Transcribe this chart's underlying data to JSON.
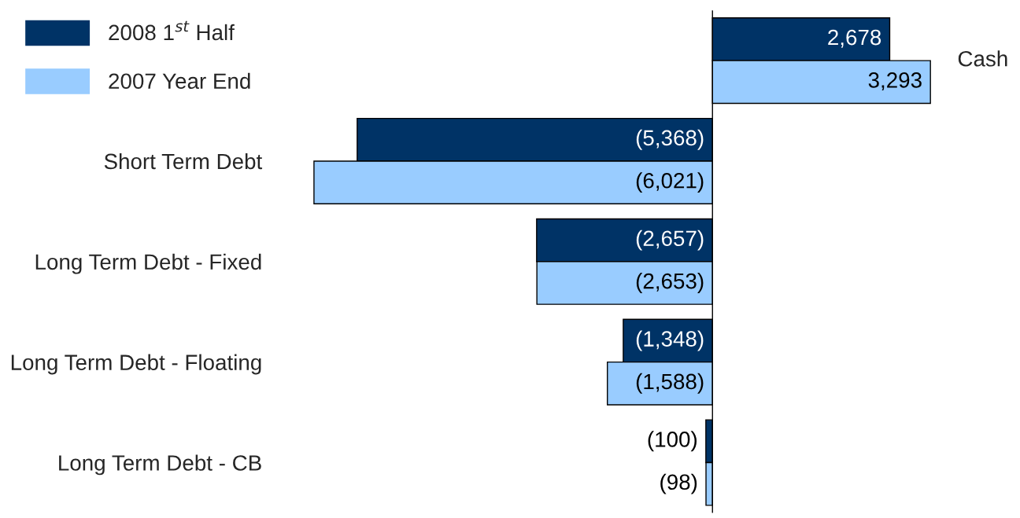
{
  "chart_data": {
    "type": "bar",
    "orientation": "horizontal",
    "categories": [
      "Cash",
      "Short Term Debt",
      "Long Term Debt - Fixed",
      "Long Term Debt - Floating",
      "Long Term Debt - CB"
    ],
    "series": [
      {
        "name": "2008 1$^{st}$ Half",
        "color": "#003366",
        "values": [
          2678,
          -5368,
          -2657,
          -1348,
          -100
        ],
        "value_labels": [
          "2,678",
          "(5,368)",
          "(2,657)",
          "(1,348)",
          "(100)"
        ]
      },
      {
        "name": "2007 Year End",
        "color": "#99ccff",
        "values": [
          3293,
          -6021,
          -2653,
          -1588,
          -98
        ],
        "value_labels": [
          "3,293",
          "(6,021)",
          "(2,653)",
          "(1,588)",
          "(98)"
        ]
      }
    ],
    "legend": "top left",
    "grid": false
  }
}
